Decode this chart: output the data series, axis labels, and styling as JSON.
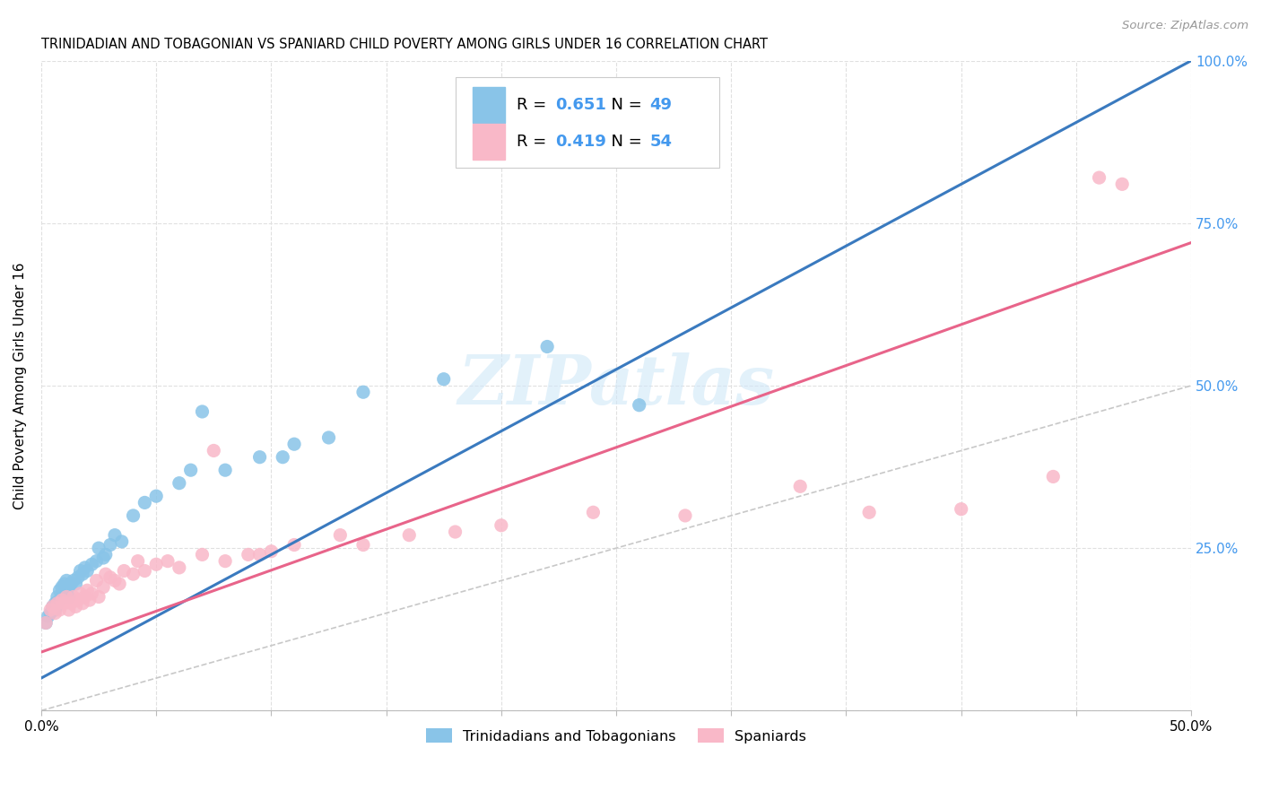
{
  "title": "TRINIDADIAN AND TOBAGONIAN VS SPANIARD CHILD POVERTY AMONG GIRLS UNDER 16 CORRELATION CHART",
  "source": "Source: ZipAtlas.com",
  "ylabel": "Child Poverty Among Girls Under 16",
  "xlim": [
    0.0,
    0.5
  ],
  "ylim": [
    0.0,
    1.0
  ],
  "xticks": [
    0.0,
    0.05,
    0.1,
    0.15,
    0.2,
    0.25,
    0.3,
    0.35,
    0.4,
    0.45,
    0.5
  ],
  "xticklabels": [
    "0.0%",
    "",
    "",
    "",
    "",
    "",
    "",
    "",
    "",
    "",
    "50.0%"
  ],
  "ytick_positions": [
    0.0,
    0.25,
    0.5,
    0.75,
    1.0
  ],
  "yticklabels": [
    "",
    "25.0%",
    "50.0%",
    "75.0%",
    "100.0%"
  ],
  "blue_R": 0.651,
  "blue_N": 49,
  "pink_R": 0.419,
  "pink_N": 54,
  "blue_color": "#89c4e8",
  "pink_color": "#f9b8c8",
  "blue_line_color": "#3a7abf",
  "pink_line_color": "#e8648a",
  "diagonal_color": "#c8c8c8",
  "legend_label_blue": "Trinidadians and Tobagonians",
  "legend_label_pink": "Spaniards",
  "blue_line": [
    0.0,
    0.05,
    0.5,
    1.0
  ],
  "pink_line": [
    0.0,
    0.09,
    0.5,
    0.72
  ],
  "blue_points_x": [
    0.002,
    0.003,
    0.004,
    0.005,
    0.006,
    0.006,
    0.007,
    0.007,
    0.008,
    0.008,
    0.009,
    0.009,
    0.01,
    0.01,
    0.011,
    0.011,
    0.012,
    0.012,
    0.013,
    0.014,
    0.015,
    0.016,
    0.017,
    0.018,
    0.019,
    0.02,
    0.022,
    0.024,
    0.025,
    0.027,
    0.028,
    0.03,
    0.032,
    0.035,
    0.04,
    0.045,
    0.05,
    0.06,
    0.065,
    0.07,
    0.08,
    0.095,
    0.105,
    0.11,
    0.125,
    0.14,
    0.175,
    0.22,
    0.26
  ],
  "blue_points_y": [
    0.135,
    0.145,
    0.15,
    0.16,
    0.165,
    0.155,
    0.175,
    0.165,
    0.17,
    0.185,
    0.175,
    0.19,
    0.18,
    0.195,
    0.185,
    0.2,
    0.19,
    0.175,
    0.195,
    0.2,
    0.195,
    0.205,
    0.215,
    0.21,
    0.22,
    0.215,
    0.225,
    0.23,
    0.25,
    0.235,
    0.24,
    0.255,
    0.27,
    0.26,
    0.3,
    0.32,
    0.33,
    0.35,
    0.37,
    0.46,
    0.37,
    0.39,
    0.39,
    0.41,
    0.42,
    0.49,
    0.51,
    0.56,
    0.47
  ],
  "pink_points_x": [
    0.002,
    0.004,
    0.005,
    0.006,
    0.007,
    0.008,
    0.009,
    0.01,
    0.011,
    0.012,
    0.013,
    0.014,
    0.015,
    0.016,
    0.017,
    0.018,
    0.019,
    0.02,
    0.021,
    0.022,
    0.024,
    0.025,
    0.027,
    0.028,
    0.03,
    0.032,
    0.034,
    0.036,
    0.04,
    0.042,
    0.045,
    0.05,
    0.055,
    0.06,
    0.07,
    0.075,
    0.08,
    0.09,
    0.095,
    0.1,
    0.11,
    0.13,
    0.14,
    0.16,
    0.18,
    0.2,
    0.24,
    0.28,
    0.33,
    0.36,
    0.4,
    0.44,
    0.46,
    0.47
  ],
  "pink_points_y": [
    0.135,
    0.155,
    0.16,
    0.15,
    0.165,
    0.155,
    0.17,
    0.165,
    0.175,
    0.155,
    0.165,
    0.175,
    0.16,
    0.17,
    0.18,
    0.165,
    0.175,
    0.185,
    0.17,
    0.18,
    0.2,
    0.175,
    0.19,
    0.21,
    0.205,
    0.2,
    0.195,
    0.215,
    0.21,
    0.23,
    0.215,
    0.225,
    0.23,
    0.22,
    0.24,
    0.4,
    0.23,
    0.24,
    0.24,
    0.245,
    0.255,
    0.27,
    0.255,
    0.27,
    0.275,
    0.285,
    0.305,
    0.3,
    0.345,
    0.305,
    0.31,
    0.36,
    0.82,
    0.81
  ],
  "watermark_text": "ZIPatlas",
  "stat_color": "#4499ee",
  "grid_color": "#e0e0e0",
  "right_tick_color": "#4499ee"
}
